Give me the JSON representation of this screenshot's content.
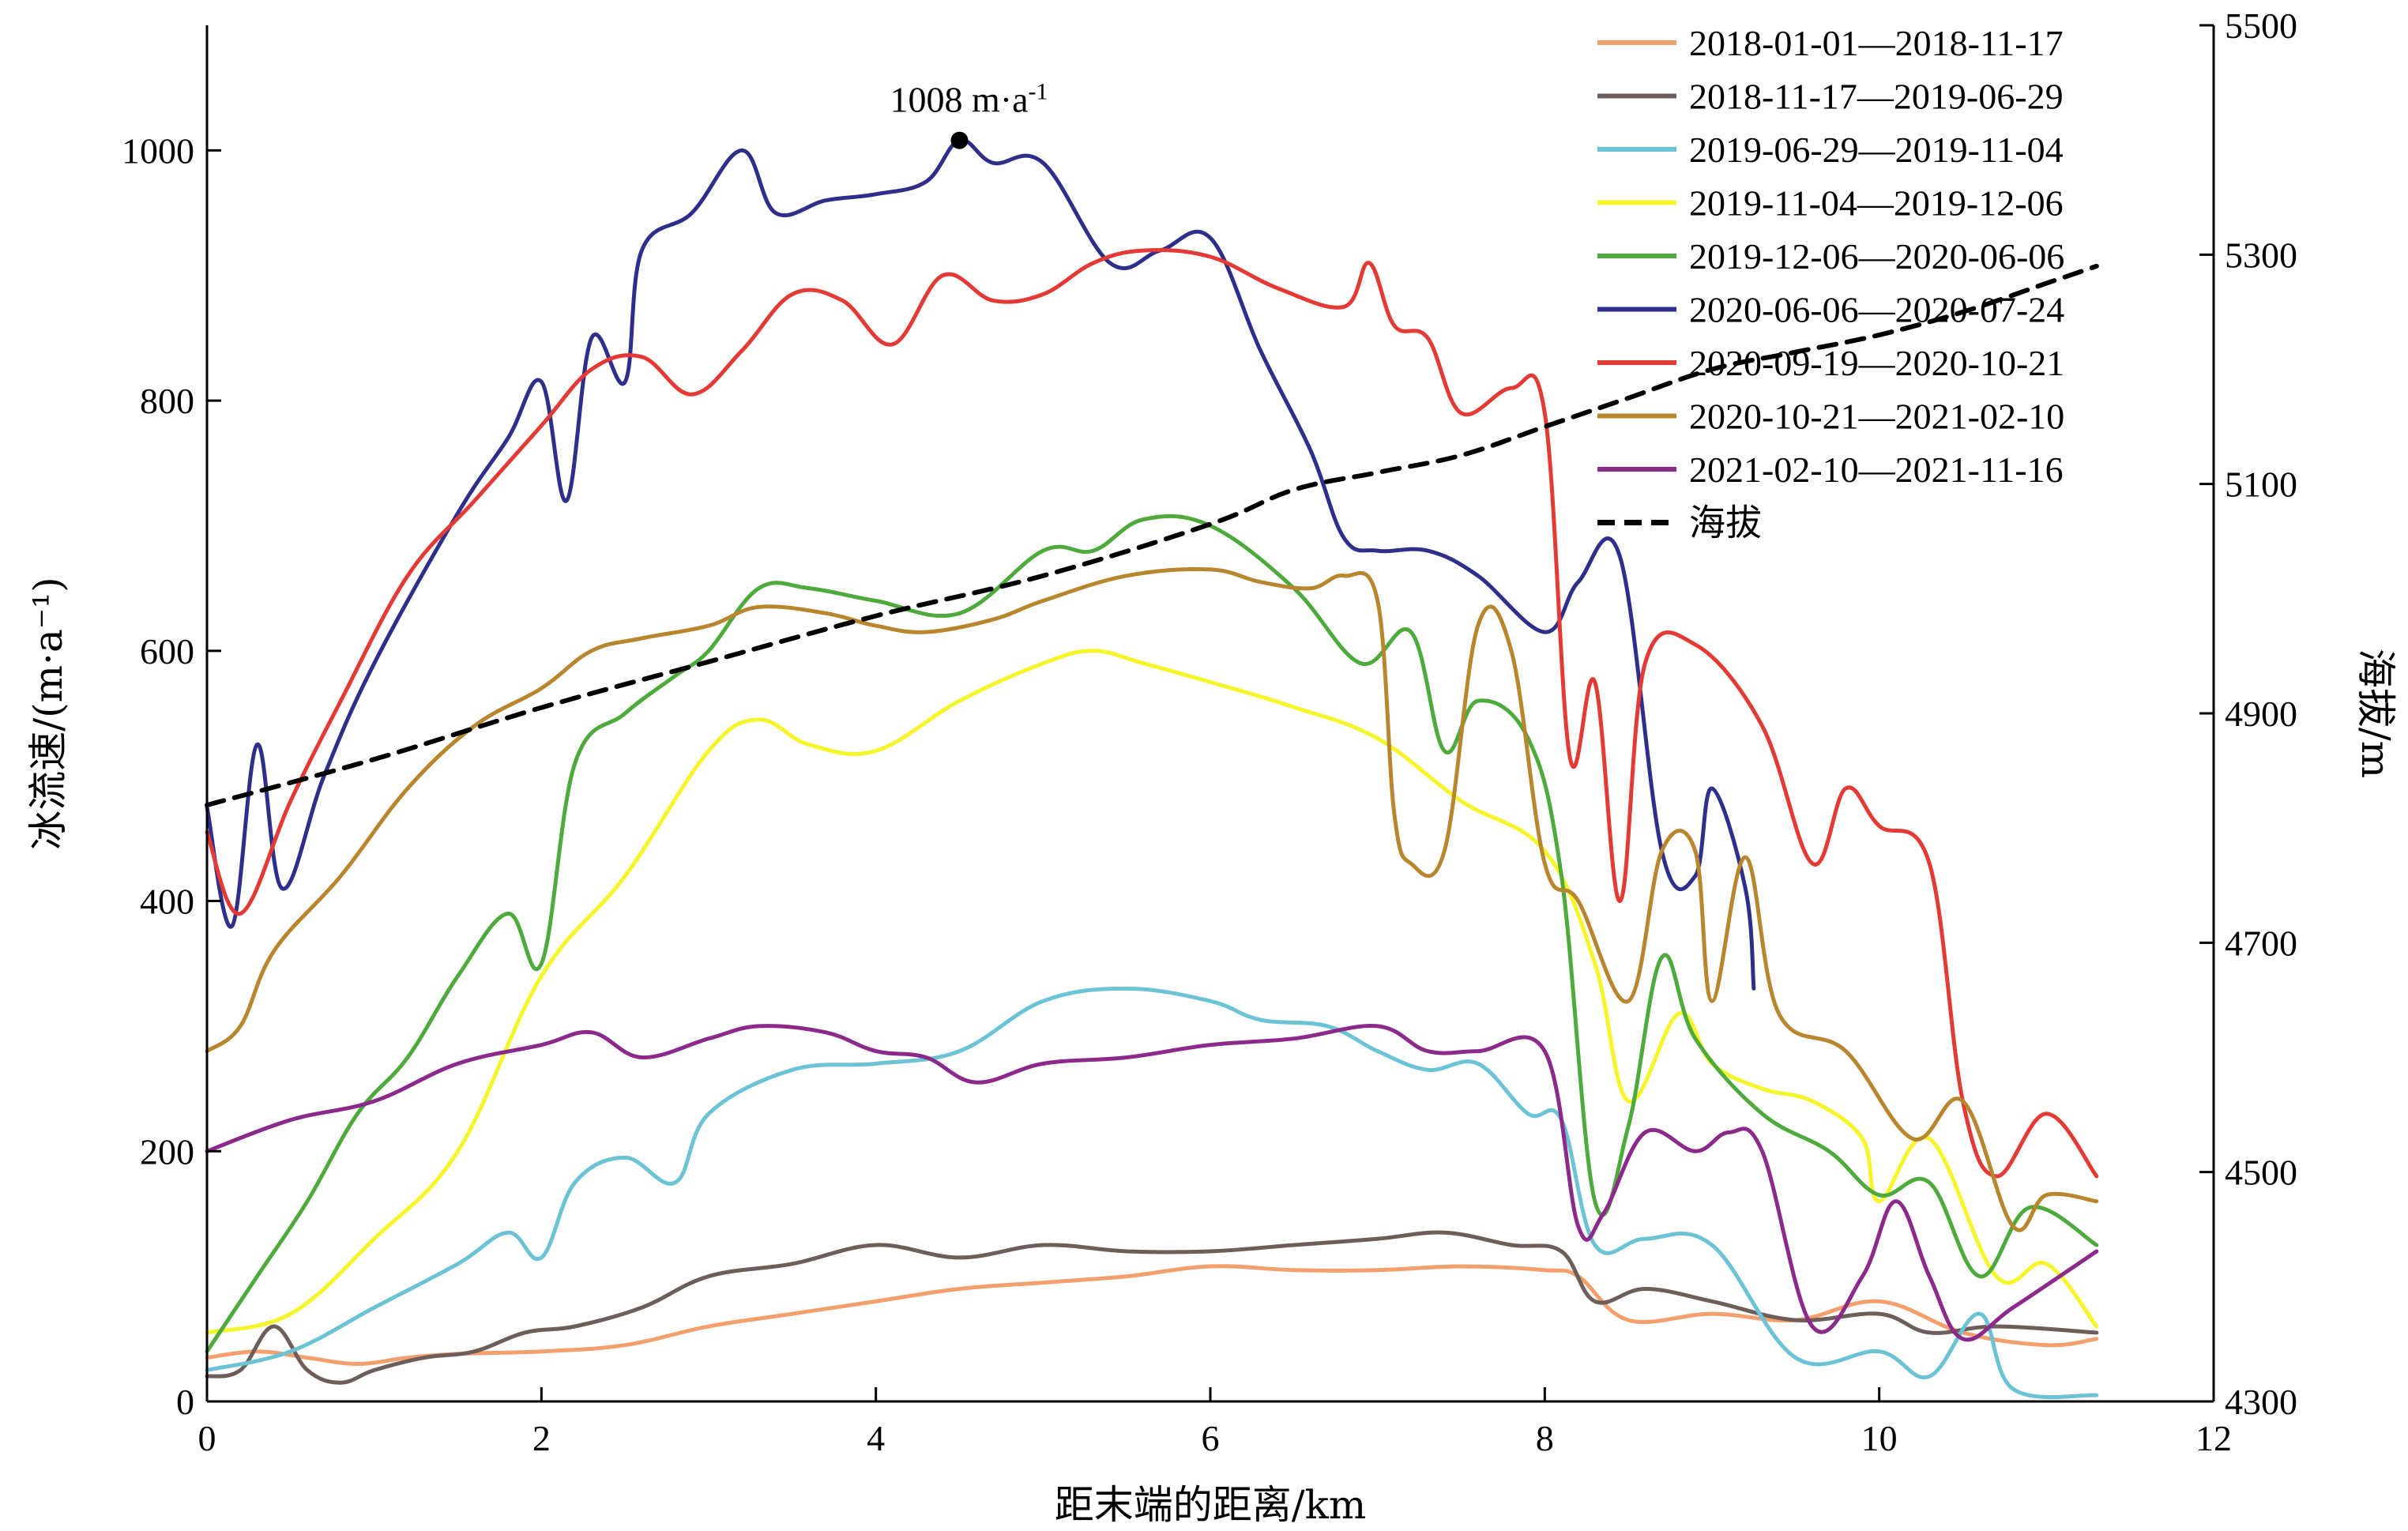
{
  "chart_data": {
    "type": "line",
    "xlabel": "距末端的距离/km",
    "ylabel": "冰流速/(m·a⁻¹)",
    "ylabel_right": "海拔/m",
    "xlim": [
      0,
      12
    ],
    "ylim": [
      0,
      1100
    ],
    "ylim_right": [
      4300,
      5500
    ],
    "x_ticks": [
      "0",
      "2",
      "4",
      "6",
      "8",
      "10",
      "12"
    ],
    "x_tick_values": [
      0,
      2,
      4,
      6,
      8,
      10,
      12
    ],
    "y_ticks": [
      "0",
      "200",
      "400",
      "600",
      "800",
      "1000"
    ],
    "y_tick_values": [
      0,
      200,
      400,
      600,
      800,
      1000
    ],
    "y_right_ticks": [
      "4300",
      "4500",
      "4700",
      "4900",
      "5100",
      "5300",
      "5500"
    ],
    "y_right_tick_values": [
      4300,
      4500,
      4700,
      4900,
      5100,
      5300,
      5500
    ],
    "legend_position": "top-right",
    "grid": false,
    "annotation": {
      "text": "1008 m·a",
      "superscript": "-1",
      "x": 4.5,
      "y": 1008
    },
    "series": [
      {
        "name": "2018-01-01—2018-11-17",
        "color": "#F4A06E",
        "axis": "left",
        "x": [
          0,
          0.3,
          0.6,
          0.9,
          1.2,
          1.5,
          2,
          2.5,
          3,
          3.5,
          4,
          4.5,
          5,
          5.5,
          6,
          6.5,
          7,
          7.5,
          8,
          8.2,
          8.5,
          9,
          9.5,
          10,
          10.5,
          11,
          11.3
        ],
        "y": [
          35,
          40,
          35,
          30,
          35,
          38,
          40,
          45,
          60,
          70,
          80,
          90,
          95,
          100,
          108,
          105,
          105,
          108,
          105,
          100,
          65,
          70,
          65,
          80,
          55,
          45,
          50
        ]
      },
      {
        "name": "2018-11-17—2019-06-29",
        "color": "#6E5E5A",
        "axis": "left",
        "x": [
          0,
          0.2,
          0.4,
          0.6,
          0.8,
          1.0,
          1.3,
          1.6,
          1.9,
          2.2,
          2.6,
          3.0,
          3.5,
          4.0,
          4.5,
          5.0,
          5.5,
          6.0,
          6.5,
          7.0,
          7.4,
          7.8,
          8.1,
          8.3,
          8.6,
          9.0,
          9.5,
          10.0,
          10.3,
          10.7,
          11.3
        ],
        "y": [
          20,
          25,
          60,
          25,
          15,
          25,
          35,
          40,
          55,
          60,
          75,
          100,
          110,
          125,
          115,
          125,
          120,
          120,
          125,
          130,
          135,
          125,
          120,
          80,
          90,
          80,
          65,
          70,
          55,
          60,
          55
        ]
      },
      {
        "name": "2019-06-29—2019-11-04",
        "color": "#6CC3D5",
        "axis": "left",
        "x": [
          0,
          0.5,
          1.0,
          1.5,
          1.8,
          2.0,
          2.2,
          2.5,
          2.8,
          3.0,
          3.5,
          4.0,
          4.5,
          5.0,
          5.5,
          6.0,
          6.3,
          6.7,
          7.0,
          7.3,
          7.6,
          7.9,
          8.1,
          8.3,
          8.6,
          9.0,
          9.5,
          10.0,
          10.3,
          10.6,
          10.8,
          11.3
        ],
        "y": [
          25,
          40,
          75,
          110,
          135,
          115,
          175,
          195,
          175,
          230,
          265,
          270,
          280,
          320,
          330,
          320,
          305,
          300,
          280,
          265,
          270,
          230,
          225,
          125,
          130,
          125,
          35,
          40,
          20,
          70,
          10,
          5
        ]
      },
      {
        "name": "2019-11-04—2019-12-06",
        "color": "#F5F52A",
        "axis": "left",
        "x": [
          0,
          0.5,
          1.0,
          1.5,
          2.0,
          2.5,
          3.0,
          3.3,
          3.6,
          4.0,
          4.5,
          5.0,
          5.3,
          5.6,
          6.0,
          6.5,
          7.0,
          7.5,
          8.0,
          8.3,
          8.5,
          8.8,
          9.0,
          9.3,
          9.6,
          9.9,
          10.0,
          10.3,
          10.7,
          11.0,
          11.3
        ],
        "y": [
          55,
          70,
          130,
          200,
          340,
          420,
          520,
          545,
          525,
          520,
          560,
          590,
          600,
          590,
          575,
          555,
          530,
          480,
          440,
          350,
          240,
          310,
          270,
          250,
          240,
          210,
          160,
          210,
          100,
          110,
          60
        ]
      },
      {
        "name": "2019-12-06—2020-06-06",
        "color": "#4EAA3C",
        "axis": "left",
        "x": [
          0,
          0.3,
          0.6,
          0.9,
          1.2,
          1.5,
          1.8,
          2.0,
          2.2,
          2.5,
          2.8,
          3.0,
          3.3,
          3.6,
          4.0,
          4.5,
          5.0,
          5.3,
          5.6,
          6.0,
          6.5,
          6.9,
          7.2,
          7.4,
          7.6,
          7.9,
          8.1,
          8.3,
          8.5,
          8.7,
          8.9,
          9.3,
          9.7,
          10.0,
          10.3,
          10.6,
          10.9,
          11.3
        ],
        "y": [
          40,
          100,
          160,
          230,
          275,
          340,
          390,
          350,
          510,
          550,
          580,
          600,
          650,
          650,
          640,
          630,
          680,
          680,
          705,
          700,
          650,
          590,
          615,
          520,
          560,
          530,
          420,
          160,
          220,
          355,
          290,
          230,
          200,
          165,
          175,
          100,
          155,
          125
        ]
      },
      {
        "name": "2020-06-06—2020-07-24",
        "color": "#2E2F8A",
        "axis": "left",
        "x": [
          0,
          0.15,
          0.3,
          0.45,
          0.7,
          1.0,
          1.5,
          1.8,
          2.0,
          2.15,
          2.3,
          2.5,
          2.6,
          2.9,
          3.2,
          3.4,
          3.7,
          4.0,
          4.3,
          4.5,
          4.7,
          5.0,
          5.4,
          5.7,
          6.0,
          6.3,
          6.6,
          6.8,
          7.0,
          7.3,
          7.6,
          8.0,
          8.2,
          8.45,
          8.7,
          8.9,
          9.0,
          9.2,
          9.25
        ],
        "y": [
          475,
          380,
          525,
          410,
          500,
          590,
          710,
          770,
          815,
          720,
          850,
          815,
          920,
          950,
          1000,
          950,
          960,
          965,
          975,
          1008,
          990,
          990,
          910,
          920,
          930,
          840,
          760,
          690,
          680,
          680,
          660,
          615,
          655,
          675,
          440,
          420,
          490,
          410,
          330
        ]
      },
      {
        "name": "2020-09-19—2020-10-21",
        "color": "#E43A35",
        "axis": "left",
        "x": [
          0,
          0.2,
          0.5,
          0.8,
          1.2,
          1.6,
          2.0,
          2.3,
          2.6,
          2.9,
          3.2,
          3.5,
          3.8,
          4.1,
          4.4,
          4.7,
          5.0,
          5.3,
          5.6,
          6.0,
          6.4,
          6.8,
          6.95,
          7.1,
          7.3,
          7.5,
          7.8,
          8.0,
          8.15,
          8.3,
          8.45,
          8.6,
          8.9,
          9.3,
          9.6,
          9.8,
          10.0,
          10.3,
          10.5,
          10.7,
          11.0,
          11.3
        ],
        "y": [
          455,
          390,
          480,
          560,
          660,
          720,
          780,
          825,
          835,
          805,
          840,
          885,
          880,
          845,
          900,
          880,
          885,
          910,
          920,
          915,
          890,
          875,
          910,
          860,
          850,
          790,
          810,
          790,
          515,
          575,
          400,
          590,
          605,
          540,
          430,
          490,
          460,
          430,
          240,
          180,
          230,
          180
        ]
      },
      {
        "name": "2020-10-21—2021-02-10",
        "color": "#B8862E",
        "axis": "left",
        "x": [
          0,
          0.2,
          0.4,
          0.8,
          1.2,
          1.6,
          2.0,
          2.3,
          2.6,
          3.0,
          3.3,
          3.7,
          4.0,
          4.3,
          4.7,
          5.0,
          5.5,
          6.0,
          6.3,
          6.6,
          6.8,
          7.0,
          7.1,
          7.2,
          7.4,
          7.6,
          7.8,
          8.0,
          8.2,
          8.5,
          8.7,
          8.9,
          9.0,
          9.2,
          9.4,
          9.8,
          10.2,
          10.5,
          10.8,
          11.0,
          11.3
        ],
        "y": [
          280,
          300,
          360,
          420,
          490,
          540,
          570,
          600,
          610,
          620,
          635,
          630,
          620,
          615,
          625,
          640,
          660,
          665,
          655,
          650,
          660,
          640,
          470,
          430,
          440,
          620,
          600,
          430,
          400,
          320,
          440,
          440,
          320,
          435,
          310,
          280,
          210,
          240,
          140,
          165,
          160
        ]
      },
      {
        "name": "2021-02-10—2021-11-16",
        "color": "#8B2A8B",
        "axis": "left",
        "x": [
          0,
          0.5,
          1.0,
          1.5,
          2.0,
          2.3,
          2.6,
          3.0,
          3.3,
          3.7,
          4.0,
          4.3,
          4.6,
          5.0,
          5.5,
          6.0,
          6.5,
          7.0,
          7.3,
          7.6,
          8.0,
          8.2,
          8.35,
          8.6,
          8.9,
          9.1,
          9.3,
          9.6,
          9.9,
          10.1,
          10.3,
          10.5,
          10.8,
          11.3
        ],
        "y": [
          200,
          225,
          240,
          270,
          285,
          295,
          275,
          290,
          300,
          295,
          280,
          275,
          255,
          270,
          275,
          285,
          290,
          300,
          280,
          280,
          280,
          140,
          150,
          215,
          200,
          215,
          200,
          60,
          100,
          160,
          100,
          50,
          75,
          120
        ]
      },
      {
        "name": "海拔",
        "color": "#000000",
        "dashed": true,
        "axis": "right",
        "x": [
          0,
          1,
          2,
          3,
          4,
          5,
          6,
          6.5,
          7,
          7.5,
          8,
          8.5,
          9,
          9.5,
          10,
          10.5,
          11,
          11.3
        ],
        "y": [
          4820,
          4860,
          4905,
          4945,
          4985,
          5020,
          5065,
          5095,
          5110,
          5125,
          5150,
          5175,
          5200,
          5215,
          5230,
          5250,
          5275,
          5290
        ]
      }
    ]
  }
}
